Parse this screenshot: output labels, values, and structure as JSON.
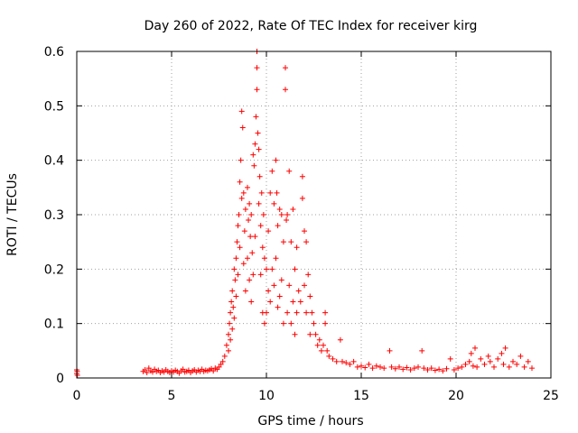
{
  "chart_data": {
    "type": "scatter",
    "title": "Day 260 of 2022, Rate Of TEC Index for receiver kirg",
    "xlabel": "GPS time / hours",
    "ylabel": "ROTI / TECUs",
    "xlim": [
      0,
      25
    ],
    "ylim": [
      0,
      0.6
    ],
    "xticks": [
      0,
      5,
      10,
      15,
      20,
      25
    ],
    "yticks": [
      0,
      0.1,
      0.2,
      0.3,
      0.4,
      0.5,
      0.6
    ],
    "xtick_labels": [
      "0",
      "5",
      "10",
      "15",
      "20",
      "25"
    ],
    "ytick_labels": [
      "0",
      "0.1",
      "0.2",
      "0.3",
      "0.4",
      "0.5",
      "0.6"
    ],
    "grid": true,
    "marker": "+",
    "color": "#ff0000",
    "series": [
      {
        "points": [
          [
            0.0,
            0.015
          ],
          [
            0.0,
            0.008
          ],
          [
            0.02,
            0.012
          ],
          [
            0.03,
            0.005
          ],
          [
            3.5,
            0.012
          ],
          [
            3.6,
            0.015
          ],
          [
            3.7,
            0.01
          ],
          [
            3.8,
            0.018
          ],
          [
            3.9,
            0.013
          ],
          [
            4.0,
            0.011
          ],
          [
            4.1,
            0.016
          ],
          [
            4.2,
            0.012
          ],
          [
            4.3,
            0.014
          ],
          [
            4.4,
            0.01
          ],
          [
            4.5,
            0.013
          ],
          [
            4.6,
            0.011
          ],
          [
            4.7,
            0.015
          ],
          [
            4.8,
            0.012
          ],
          [
            4.9,
            0.01
          ],
          [
            5.0,
            0.013
          ],
          [
            5.1,
            0.011
          ],
          [
            5.2,
            0.014
          ],
          [
            5.3,
            0.012
          ],
          [
            5.4,
            0.009
          ],
          [
            5.5,
            0.013
          ],
          [
            5.6,
            0.016
          ],
          [
            5.7,
            0.011
          ],
          [
            5.8,
            0.012
          ],
          [
            5.9,
            0.014
          ],
          [
            6.0,
            0.01
          ],
          [
            6.1,
            0.013
          ],
          [
            6.2,
            0.015
          ],
          [
            6.3,
            0.011
          ],
          [
            6.4,
            0.014
          ],
          [
            6.5,
            0.012
          ],
          [
            6.6,
            0.016
          ],
          [
            6.7,
            0.012
          ],
          [
            6.8,
            0.014
          ],
          [
            6.9,
            0.013
          ],
          [
            7.0,
            0.015
          ],
          [
            7.1,
            0.017
          ],
          [
            7.2,
            0.013
          ],
          [
            7.3,
            0.018
          ],
          [
            7.4,
            0.016
          ],
          [
            7.5,
            0.02
          ],
          [
            7.6,
            0.025
          ],
          [
            7.7,
            0.03
          ],
          [
            7.8,
            0.04
          ],
          [
            7.9,
            0.06
          ],
          [
            8.0,
            0.08
          ],
          [
            8.0,
            0.05
          ],
          [
            8.05,
            0.1
          ],
          [
            8.1,
            0.12
          ],
          [
            8.1,
            0.07
          ],
          [
            8.15,
            0.14
          ],
          [
            8.2,
            0.16
          ],
          [
            8.2,
            0.09
          ],
          [
            8.25,
            0.13
          ],
          [
            8.3,
            0.2
          ],
          [
            8.3,
            0.11
          ],
          [
            8.35,
            0.18
          ],
          [
            8.4,
            0.22
          ],
          [
            8.4,
            0.15
          ],
          [
            8.45,
            0.25
          ],
          [
            8.5,
            0.28
          ],
          [
            8.5,
            0.19
          ],
          [
            8.55,
            0.3
          ],
          [
            8.6,
            0.36
          ],
          [
            8.6,
            0.24
          ],
          [
            8.65,
            0.4
          ],
          [
            8.7,
            0.49
          ],
          [
            8.7,
            0.33
          ],
          [
            8.75,
            0.46
          ],
          [
            8.8,
            0.34
          ],
          [
            8.8,
            0.21
          ],
          [
            8.85,
            0.27
          ],
          [
            8.9,
            0.31
          ],
          [
            8.9,
            0.16
          ],
          [
            9.0,
            0.35
          ],
          [
            9.0,
            0.22
          ],
          [
            9.05,
            0.29
          ],
          [
            9.1,
            0.32
          ],
          [
            9.1,
            0.18
          ],
          [
            9.15,
            0.26
          ],
          [
            9.2,
            0.3
          ],
          [
            9.2,
            0.14
          ],
          [
            9.25,
            0.23
          ],
          [
            9.3,
            0.41
          ],
          [
            9.3,
            0.19
          ],
          [
            9.35,
            0.39
          ],
          [
            9.4,
            0.43
          ],
          [
            9.4,
            0.26
          ],
          [
            9.45,
            0.48
          ],
          [
            9.5,
            0.6
          ],
          [
            9.5,
            0.53
          ],
          [
            9.5,
            0.57
          ],
          [
            9.55,
            0.45
          ],
          [
            9.6,
            0.42
          ],
          [
            9.6,
            0.32
          ],
          [
            9.65,
            0.37
          ],
          [
            9.7,
            0.28
          ],
          [
            9.7,
            0.19
          ],
          [
            9.75,
            0.34
          ],
          [
            9.8,
            0.24
          ],
          [
            9.8,
            0.12
          ],
          [
            9.85,
            0.3
          ],
          [
            9.9,
            0.22
          ],
          [
            9.9,
            0.1
          ],
          [
            10.0,
            0.2
          ],
          [
            10.0,
            0.12
          ],
          [
            10.1,
            0.27
          ],
          [
            10.1,
            0.16
          ],
          [
            10.2,
            0.34
          ],
          [
            10.2,
            0.14
          ],
          [
            10.3,
            0.38
          ],
          [
            10.3,
            0.2
          ],
          [
            10.4,
            0.32
          ],
          [
            10.4,
            0.17
          ],
          [
            10.5,
            0.4
          ],
          [
            10.5,
            0.22
          ],
          [
            10.55,
            0.34
          ],
          [
            10.6,
            0.28
          ],
          [
            10.6,
            0.13
          ],
          [
            10.7,
            0.31
          ],
          [
            10.7,
            0.15
          ],
          [
            10.8,
            0.3
          ],
          [
            10.8,
            0.18
          ],
          [
            10.9,
            0.25
          ],
          [
            10.9,
            0.1
          ],
          [
            11.0,
            0.57
          ],
          [
            11.0,
            0.53
          ],
          [
            11.05,
            0.29
          ],
          [
            11.1,
            0.3
          ],
          [
            11.1,
            0.12
          ],
          [
            11.2,
            0.38
          ],
          [
            11.2,
            0.17
          ],
          [
            11.3,
            0.25
          ],
          [
            11.3,
            0.1
          ],
          [
            11.4,
            0.31
          ],
          [
            11.4,
            0.14
          ],
          [
            11.5,
            0.2
          ],
          [
            11.5,
            0.08
          ],
          [
            11.6,
            0.24
          ],
          [
            11.6,
            0.12
          ],
          [
            11.7,
            0.16
          ],
          [
            11.8,
            0.14
          ],
          [
            11.9,
            0.37
          ],
          [
            11.9,
            0.33
          ],
          [
            12.0,
            0.27
          ],
          [
            12.0,
            0.17
          ],
          [
            12.1,
            0.25
          ],
          [
            12.1,
            0.12
          ],
          [
            12.2,
            0.19
          ],
          [
            12.3,
            0.15
          ],
          [
            12.3,
            0.08
          ],
          [
            12.4,
            0.12
          ],
          [
            12.5,
            0.1
          ],
          [
            12.6,
            0.08
          ],
          [
            12.7,
            0.06
          ],
          [
            12.8,
            0.07
          ],
          [
            12.9,
            0.05
          ],
          [
            13.0,
            0.06
          ],
          [
            13.1,
            0.12
          ],
          [
            13.1,
            0.1
          ],
          [
            13.2,
            0.05
          ],
          [
            13.3,
            0.04
          ],
          [
            13.5,
            0.035
          ],
          [
            13.7,
            0.03
          ],
          [
            13.9,
            0.07
          ],
          [
            14.0,
            0.03
          ],
          [
            14.2,
            0.028
          ],
          [
            14.4,
            0.025
          ],
          [
            14.6,
            0.03
          ],
          [
            14.8,
            0.02
          ],
          [
            15.0,
            0.022
          ],
          [
            15.2,
            0.019
          ],
          [
            15.4,
            0.025
          ],
          [
            15.6,
            0.018
          ],
          [
            15.8,
            0.022
          ],
          [
            16.0,
            0.02
          ],
          [
            16.2,
            0.018
          ],
          [
            16.5,
            0.05
          ],
          [
            16.6,
            0.02
          ],
          [
            16.8,
            0.017
          ],
          [
            17.0,
            0.02
          ],
          [
            17.2,
            0.016
          ],
          [
            17.4,
            0.019
          ],
          [
            17.6,
            0.015
          ],
          [
            17.8,
            0.018
          ],
          [
            18.0,
            0.02
          ],
          [
            18.2,
            0.05
          ],
          [
            18.3,
            0.018
          ],
          [
            18.5,
            0.015
          ],
          [
            18.7,
            0.018
          ],
          [
            18.9,
            0.014
          ],
          [
            19.1,
            0.016
          ],
          [
            19.3,
            0.013
          ],
          [
            19.5,
            0.017
          ],
          [
            19.7,
            0.035
          ],
          [
            19.9,
            0.015
          ],
          [
            20.1,
            0.018
          ],
          [
            20.3,
            0.02
          ],
          [
            20.5,
            0.025
          ],
          [
            20.7,
            0.03
          ],
          [
            20.8,
            0.045
          ],
          [
            20.9,
            0.022
          ],
          [
            21.0,
            0.055
          ],
          [
            21.1,
            0.02
          ],
          [
            21.3,
            0.035
          ],
          [
            21.5,
            0.025
          ],
          [
            21.7,
            0.04
          ],
          [
            21.8,
            0.03
          ],
          [
            22.0,
            0.02
          ],
          [
            22.2,
            0.035
          ],
          [
            22.4,
            0.045
          ],
          [
            22.5,
            0.025
          ],
          [
            22.6,
            0.055
          ],
          [
            22.8,
            0.02
          ],
          [
            23.0,
            0.03
          ],
          [
            23.2,
            0.025
          ],
          [
            23.4,
            0.04
          ],
          [
            23.6,
            0.02
          ],
          [
            23.8,
            0.03
          ],
          [
            24.0,
            0.018
          ]
        ]
      }
    ]
  }
}
